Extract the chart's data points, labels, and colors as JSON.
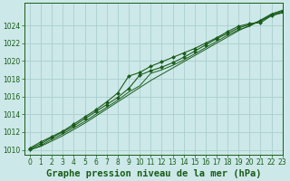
{
  "title": "Graphe pression niveau de la mer (hPa)",
  "bg_color": "#cce8e8",
  "line_color": "#1a5c1a",
  "marker_color": "#1a5c1a",
  "grid_color": "#aacece",
  "xlim": [
    -0.5,
    23
  ],
  "ylim": [
    1009.5,
    1026.5
  ],
  "yticks": [
    1010,
    1012,
    1014,
    1016,
    1018,
    1020,
    1022,
    1024
  ],
  "xticks": [
    0,
    1,
    2,
    3,
    4,
    5,
    6,
    7,
    8,
    9,
    10,
    11,
    12,
    13,
    14,
    15,
    16,
    17,
    18,
    19,
    20,
    21,
    22,
    23
  ],
  "s1_x": [
    0,
    1,
    2,
    3,
    4,
    5,
    6,
    7,
    8,
    9,
    10,
    11,
    12,
    13,
    14,
    15,
    16,
    17,
    18,
    19,
    20,
    21,
    22,
    23
  ],
  "s1_y": [
    1010.2,
    1010.9,
    1011.5,
    1012.1,
    1012.9,
    1013.7,
    1014.5,
    1015.4,
    1016.4,
    1018.3,
    1018.7,
    1019.4,
    1019.9,
    1020.4,
    1020.9,
    1021.4,
    1022.0,
    1022.6,
    1023.3,
    1023.9,
    1024.2,
    1024.3,
    1025.1,
    1025.5
  ],
  "s2_x": [
    0,
    1,
    2,
    3,
    4,
    5,
    6,
    7,
    8,
    9,
    10,
    11,
    12,
    13,
    14,
    15,
    16,
    17,
    18,
    19,
    20,
    21,
    22,
    23
  ],
  "s2_y": [
    1010.1,
    1010.7,
    1011.4,
    1012.0,
    1012.7,
    1013.5,
    1014.3,
    1015.1,
    1015.9,
    1016.9,
    1018.4,
    1018.9,
    1019.3,
    1019.8,
    1020.4,
    1021.1,
    1021.8,
    1022.5,
    1023.1,
    1023.7,
    1024.1,
    1024.5,
    1025.2,
    1025.6
  ],
  "s3_x": [
    0,
    1,
    2,
    3,
    4,
    5,
    6,
    7,
    8,
    9,
    10,
    11,
    12,
    13,
    14,
    15,
    16,
    17,
    18,
    19,
    20,
    21,
    22,
    23
  ],
  "s3_y": [
    1010.0,
    1010.5,
    1011.2,
    1011.8,
    1012.5,
    1013.2,
    1014.0,
    1014.8,
    1015.6,
    1016.5,
    1017.2,
    1018.6,
    1019.0,
    1019.5,
    1020.1,
    1020.8,
    1021.5,
    1022.2,
    1022.9,
    1023.5,
    1023.9,
    1024.6,
    1025.3,
    1025.7
  ],
  "s4_x": [
    0,
    1,
    2,
    3,
    4,
    5,
    6,
    7,
    8,
    9,
    10,
    11,
    12,
    13,
    14,
    15,
    16,
    17,
    18,
    19,
    20,
    21,
    22,
    23
  ],
  "s4_y": [
    1010.0,
    1010.4,
    1011.0,
    1011.6,
    1012.3,
    1013.0,
    1013.8,
    1014.6,
    1015.4,
    1016.2,
    1017.0,
    1017.8,
    1018.5,
    1019.2,
    1019.9,
    1020.6,
    1021.3,
    1022.0,
    1022.7,
    1023.4,
    1024.0,
    1024.5,
    1025.1,
    1025.4
  ],
  "tick_fontsize": 5.5,
  "title_fontsize": 7.5
}
